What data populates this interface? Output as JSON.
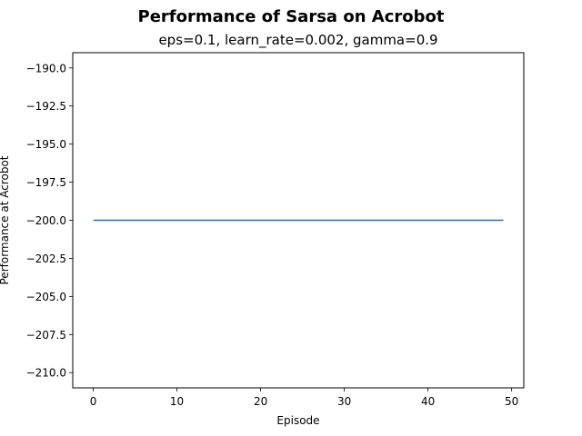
{
  "chart_data": {
    "type": "line",
    "title": "Performance of Sarsa on Acrobot",
    "subtitle": "eps=0.1, learn_rate=0.002, gamma=0.9",
    "xlabel": "Episode",
    "ylabel": "Performance at Acrobot",
    "xlim": [
      -2.45,
      51.45
    ],
    "ylim": [
      -211.0,
      -189.0
    ],
    "xticks": [
      0,
      10,
      20,
      30,
      40,
      50
    ],
    "yticks": [
      -190.0,
      -192.5,
      -195.0,
      -197.5,
      -200.0,
      -202.5,
      -205.0,
      -207.5,
      -210.0
    ],
    "xtick_labels": [
      "0",
      "10",
      "20",
      "30",
      "40",
      "50"
    ],
    "ytick_labels": [
      "−190.0",
      "−192.5",
      "−195.0",
      "−197.5",
      "−200.0",
      "−202.5",
      "−205.0",
      "−207.5",
      "−210.0"
    ],
    "grid": false,
    "legend": "none",
    "series": [
      {
        "color": "#1f77b4",
        "x": [
          0,
          1,
          2,
          3,
          4,
          5,
          6,
          7,
          8,
          9,
          10,
          11,
          12,
          13,
          14,
          15,
          16,
          17,
          18,
          19,
          20,
          21,
          22,
          23,
          24,
          25,
          26,
          27,
          28,
          29,
          30,
          31,
          32,
          33,
          34,
          35,
          36,
          37,
          38,
          39,
          40,
          41,
          42,
          43,
          44,
          45,
          46,
          47,
          48,
          49
        ],
        "values": [
          -200,
          -200,
          -200,
          -200,
          -200,
          -200,
          -200,
          -200,
          -200,
          -200,
          -200,
          -200,
          -200,
          -200,
          -200,
          -200,
          -200,
          -200,
          -200,
          -200,
          -200,
          -200,
          -200,
          -200,
          -200,
          -200,
          -200,
          -200,
          -200,
          -200,
          -200,
          -200,
          -200,
          -200,
          -200,
          -200,
          -200,
          -200,
          -200,
          -200,
          -200,
          -200,
          -200,
          -200,
          -200,
          -200,
          -200,
          -200,
          -200,
          -200
        ]
      }
    ]
  }
}
